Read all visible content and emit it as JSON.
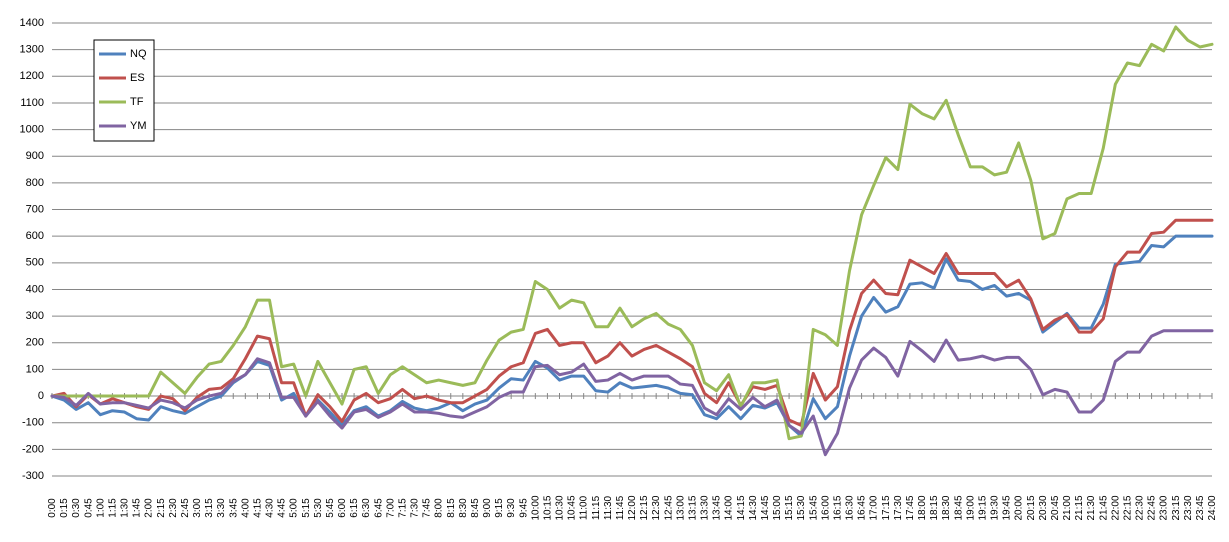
{
  "chart_data": {
    "type": "line",
    "title": "",
    "xlabel": "",
    "ylabel": "",
    "ylim": [
      -300,
      1400
    ],
    "ytick_step": 100,
    "grid": "horizontal",
    "legend_position": "top-left",
    "x": [
      "0:00",
      "0:15",
      "0:30",
      "0:45",
      "1:00",
      "1:15",
      "1:30",
      "1:45",
      "2:00",
      "2:15",
      "2:30",
      "2:45",
      "3:00",
      "3:15",
      "3:30",
      "3:45",
      "4:00",
      "4:15",
      "4:30",
      "4:45",
      "5:00",
      "5:15",
      "5:30",
      "5:45",
      "6:00",
      "6:15",
      "6:30",
      "6:45",
      "7:00",
      "7:15",
      "7:30",
      "7:45",
      "8:00",
      "8:15",
      "8:30",
      "8:45",
      "9:00",
      "9:15",
      "9:30",
      "9:45",
      "10:00",
      "10:15",
      "10:30",
      "10:45",
      "11:00",
      "11:15",
      "11:30",
      "11:45",
      "12:00",
      "12:15",
      "12:30",
      "12:45",
      "13:00",
      "13:15",
      "13:30",
      "13:45",
      "14:00",
      "14:15",
      "14:30",
      "14:45",
      "15:00",
      "15:15",
      "15:30",
      "15:45",
      "16:00",
      "16:15",
      "16:30",
      "16:45",
      "17:00",
      "17:15",
      "17:30",
      "17:45",
      "18:00",
      "18:15",
      "18:30",
      "18:45",
      "19:00",
      "19:15",
      "19:30",
      "19:45",
      "20:00",
      "20:15",
      "20:30",
      "20:45",
      "21:00",
      "21:15",
      "21:30",
      "21:45",
      "22:00",
      "22:15",
      "22:30",
      "22:45",
      "23:00",
      "23:15",
      "23:30",
      "23:45",
      "24:00"
    ],
    "series": [
      {
        "name": "NQ",
        "color": "#4f81bd",
        "values": [
          0,
          -15,
          -50,
          -25,
          -70,
          -55,
          -60,
          -85,
          -90,
          -40,
          -55,
          -65,
          -40,
          -15,
          0,
          50,
          80,
          130,
          115,
          -15,
          10,
          -75,
          -15,
          -60,
          -110,
          -55,
          -40,
          -75,
          -55,
          -20,
          -45,
          -55,
          -45,
          -25,
          -55,
          -30,
          -15,
          30,
          65,
          60,
          130,
          105,
          60,
          75,
          75,
          20,
          15,
          50,
          30,
          35,
          40,
          30,
          10,
          5,
          -70,
          -85,
          -40,
          -85,
          -35,
          -45,
          -25,
          -110,
          -150,
          -10,
          -85,
          -40,
          150,
          300,
          370,
          315,
          335,
          420,
          425,
          405,
          515,
          435,
          430,
          400,
          415,
          375,
          385,
          360,
          240,
          275,
          310,
          255,
          255,
          345,
          495,
          500,
          505,
          565,
          560,
          600,
          600,
          600,
          600
        ]
      },
      {
        "name": "ES",
        "color": "#c0504d",
        "values": [
          0,
          10,
          -40,
          5,
          -30,
          -10,
          -25,
          -40,
          -50,
          0,
          -10,
          -55,
          -5,
          25,
          30,
          65,
          140,
          225,
          215,
          50,
          50,
          -75,
          5,
          -40,
          -95,
          -15,
          10,
          -25,
          -10,
          25,
          -10,
          0,
          -15,
          -25,
          -25,
          0,
          25,
          75,
          110,
          125,
          235,
          250,
          190,
          200,
          200,
          125,
          150,
          200,
          150,
          175,
          190,
          165,
          140,
          110,
          10,
          -25,
          50,
          -35,
          35,
          25,
          40,
          -90,
          -110,
          85,
          -15,
          35,
          245,
          385,
          435,
          385,
          380,
          510,
          485,
          460,
          535,
          460,
          460,
          460,
          460,
          410,
          435,
          365,
          250,
          285,
          305,
          240,
          240,
          290,
          485,
          540,
          540,
          610,
          615,
          660,
          660,
          660,
          660
        ]
      },
      {
        "name": "TF",
        "color": "#9bbb59",
        "values": [
          0,
          0,
          0,
          0,
          0,
          0,
          0,
          0,
          0,
          90,
          50,
          10,
          70,
          120,
          130,
          190,
          260,
          360,
          360,
          110,
          120,
          0,
          130,
          50,
          -30,
          100,
          110,
          10,
          80,
          110,
          80,
          50,
          60,
          50,
          40,
          50,
          135,
          210,
          240,
          250,
          430,
          400,
          330,
          360,
          350,
          260,
          260,
          330,
          260,
          290,
          310,
          270,
          250,
          190,
          50,
          20,
          80,
          -40,
          50,
          50,
          60,
          -160,
          -150,
          250,
          230,
          190,
          470,
          680,
          790,
          895,
          850,
          1095,
          1060,
          1040,
          1110,
          980,
          860,
          860,
          830,
          840,
          950,
          810,
          590,
          610,
          740,
          760,
          760,
          930,
          1170,
          1250,
          1240,
          1320,
          1295,
          1385,
          1335,
          1310,
          1320
        ]
      },
      {
        "name": "YM",
        "color": "#8064a2",
        "values": [
          0,
          -5,
          -35,
          10,
          -30,
          -25,
          -25,
          -35,
          -45,
          -15,
          -25,
          -45,
          -15,
          0,
          10,
          55,
          80,
          140,
          125,
          -5,
          -5,
          -75,
          -20,
          -75,
          -120,
          -60,
          -50,
          -80,
          -60,
          -30,
          -60,
          -60,
          -65,
          -75,
          -80,
          -60,
          -40,
          -5,
          15,
          15,
          110,
          115,
          80,
          90,
          120,
          55,
          60,
          85,
          60,
          75,
          75,
          75,
          45,
          40,
          -45,
          -70,
          -10,
          -50,
          -5,
          -40,
          -15,
          -110,
          -140,
          -75,
          -220,
          -140,
          30,
          135,
          180,
          145,
          75,
          205,
          170,
          130,
          210,
          135,
          140,
          150,
          135,
          145,
          145,
          100,
          5,
          25,
          15,
          -60,
          -60,
          -15,
          130,
          165,
          165,
          225,
          245,
          245,
          245,
          245,
          245
        ]
      }
    ]
  }
}
